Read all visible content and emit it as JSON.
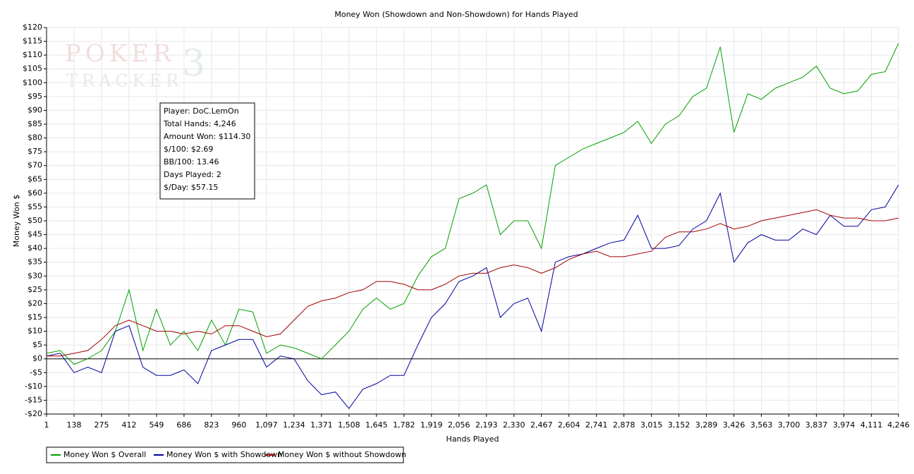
{
  "chart_data": {
    "type": "line",
    "title": "Money Won (Showdown and Non-Showdown) for Hands Played",
    "x_label": "Hands Played",
    "y_label": "Money Won $",
    "watermark": [
      "POKER",
      "3",
      "TRACKER"
    ],
    "annotations": [
      "Player: DoC.LemOn",
      "Total Hands: 4,246",
      "Amount Won: $114.30",
      "$/100: $2.69",
      "BB/100: 13.46",
      "Days Played: 2",
      "$/Day: $57.15"
    ],
    "grid": true,
    "legend": "bottom-left",
    "xlim": [
      1,
      4246
    ],
    "ylim": [
      -20,
      120
    ],
    "xticks": [
      1,
      138,
      275,
      412,
      549,
      686,
      823,
      960,
      {
        "value": 1097,
        "label": "1,097"
      },
      {
        "value": 1234,
        "label": "1,234"
      },
      {
        "value": 1371,
        "label": "1,371"
      },
      {
        "value": 1508,
        "label": "1,508"
      },
      {
        "value": 1645,
        "label": "1,645"
      },
      {
        "value": 1782,
        "label": "1,782"
      },
      {
        "value": 1919,
        "label": "1,919"
      },
      {
        "value": 2056,
        "label": "2,056"
      },
      {
        "value": 2193,
        "label": "2,193"
      },
      {
        "value": 2330,
        "label": "2,330"
      },
      {
        "value": 2467,
        "label": "2,467"
      },
      {
        "value": 2604,
        "label": "2,604"
      },
      {
        "value": 2741,
        "label": "2,741"
      },
      {
        "value": 2878,
        "label": "2,878"
      },
      {
        "value": 3015,
        "label": "3,015"
      },
      {
        "value": 3152,
        "label": "3,152"
      },
      {
        "value": 3289,
        "label": "3,289"
      },
      {
        "value": 3426,
        "label": "3,426"
      },
      {
        "value": 3563,
        "label": "3,563"
      },
      {
        "value": 3700,
        "label": "3,700"
      },
      {
        "value": 3837,
        "label": "3,837"
      },
      {
        "value": 3974,
        "label": "3,974"
      },
      {
        "value": 4111,
        "label": "4,111"
      },
      {
        "value": 4246,
        "label": "4,246"
      }
    ],
    "yticks": [
      {
        "value": -20,
        "label": "-$20"
      },
      {
        "value": -15,
        "label": "-$15"
      },
      {
        "value": -10,
        "label": "-$10"
      },
      {
        "value": -5,
        "label": "-$5"
      },
      {
        "value": 0,
        "label": "$0"
      },
      {
        "value": 5,
        "label": "$5"
      },
      {
        "value": 10,
        "label": "$10"
      },
      {
        "value": 15,
        "label": "$15"
      },
      {
        "value": 20,
        "label": "$20"
      },
      {
        "value": 25,
        "label": "$25"
      },
      {
        "value": 30,
        "label": "$30"
      },
      {
        "value": 35,
        "label": "$35"
      },
      {
        "value": 40,
        "label": "$40"
      },
      {
        "value": 45,
        "label": "$45"
      },
      {
        "value": 50,
        "label": "$50"
      },
      {
        "value": 55,
        "label": "$55"
      },
      {
        "value": 60,
        "label": "$60"
      },
      {
        "value": 65,
        "label": "$65"
      },
      {
        "value": 70,
        "label": "$70"
      },
      {
        "value": 75,
        "label": "$75"
      },
      {
        "value": 80,
        "label": "$80"
      },
      {
        "value": 85,
        "label": "$85"
      },
      {
        "value": 90,
        "label": "$90"
      },
      {
        "value": 95,
        "label": "$95"
      },
      {
        "value": 100,
        "label": "$100"
      },
      {
        "value": 105,
        "label": "$105"
      },
      {
        "value": 110,
        "label": "$110"
      },
      {
        "value": 115,
        "label": "$115"
      },
      {
        "value": 120,
        "label": "$120"
      }
    ],
    "x": [
      1,
      69,
      138,
      206,
      275,
      344,
      412,
      481,
      549,
      618,
      686,
      755,
      823,
      892,
      960,
      1029,
      1097,
      1166,
      1234,
      1303,
      1371,
      1440,
      1508,
      1577,
      1645,
      1714,
      1782,
      1851,
      1919,
      1988,
      2056,
      2125,
      2193,
      2262,
      2330,
      2399,
      2467,
      2536,
      2604,
      2673,
      2741,
      2810,
      2878,
      2947,
      3015,
      3084,
      3152,
      3221,
      3289,
      3358,
      3426,
      3495,
      3563,
      3632,
      3700,
      3769,
      3837,
      3906,
      3974,
      4043,
      4111,
      4180,
      4246
    ],
    "series": [
      {
        "name": "Money Won $ Overall",
        "color": "#00a000",
        "values": [
          2,
          3,
          -2,
          0,
          3,
          10,
          25,
          3,
          18,
          5,
          10,
          3,
          14,
          5,
          18,
          17,
          2,
          5,
          4,
          2,
          0,
          5,
          10,
          18,
          22,
          18,
          20,
          30,
          37,
          40,
          58,
          60,
          63,
          45,
          50,
          50,
          40,
          70,
          73,
          76,
          78,
          80,
          82,
          86,
          78,
          85,
          88,
          95,
          98,
          113,
          82,
          96,
          94,
          98,
          100,
          102,
          106,
          98,
          96,
          97,
          103,
          104,
          114.3
        ]
      },
      {
        "name": "Money Won $ with Showdown",
        "color": "#0000a0",
        "values": [
          1,
          2,
          -5,
          -3,
          -5,
          10,
          12,
          -3,
          -6,
          -6,
          -4,
          -9,
          3,
          5,
          7,
          7,
          -3,
          1,
          0,
          -8,
          -13,
          -12,
          -18,
          -11,
          -9,
          -6,
          -6,
          5,
          15,
          20,
          28,
          30,
          33,
          15,
          20,
          22,
          10,
          35,
          37,
          38,
          40,
          42,
          43,
          52,
          40,
          40,
          41,
          47,
          50,
          60,
          35,
          42,
          45,
          43,
          43,
          47,
          45,
          52,
          48,
          48,
          54,
          55,
          63
        ]
      },
      {
        "name": "Money Won $ without Showdown",
        "color": "#a00000",
        "values": [
          1,
          1,
          2,
          3,
          7,
          12,
          14,
          12,
          10,
          10,
          9,
          10,
          9,
          12,
          12,
          10,
          8,
          9,
          14,
          19,
          21,
          22,
          24,
          25,
          28,
          28,
          27,
          25,
          25,
          27,
          30,
          31,
          31,
          33,
          34,
          33,
          31,
          33,
          36,
          38,
          39,
          37,
          37,
          38,
          39,
          44,
          46,
          46,
          47,
          49,
          47,
          48,
          50,
          51,
          52,
          53,
          54,
          52,
          51,
          51,
          50,
          50,
          51
        ]
      }
    ]
  }
}
